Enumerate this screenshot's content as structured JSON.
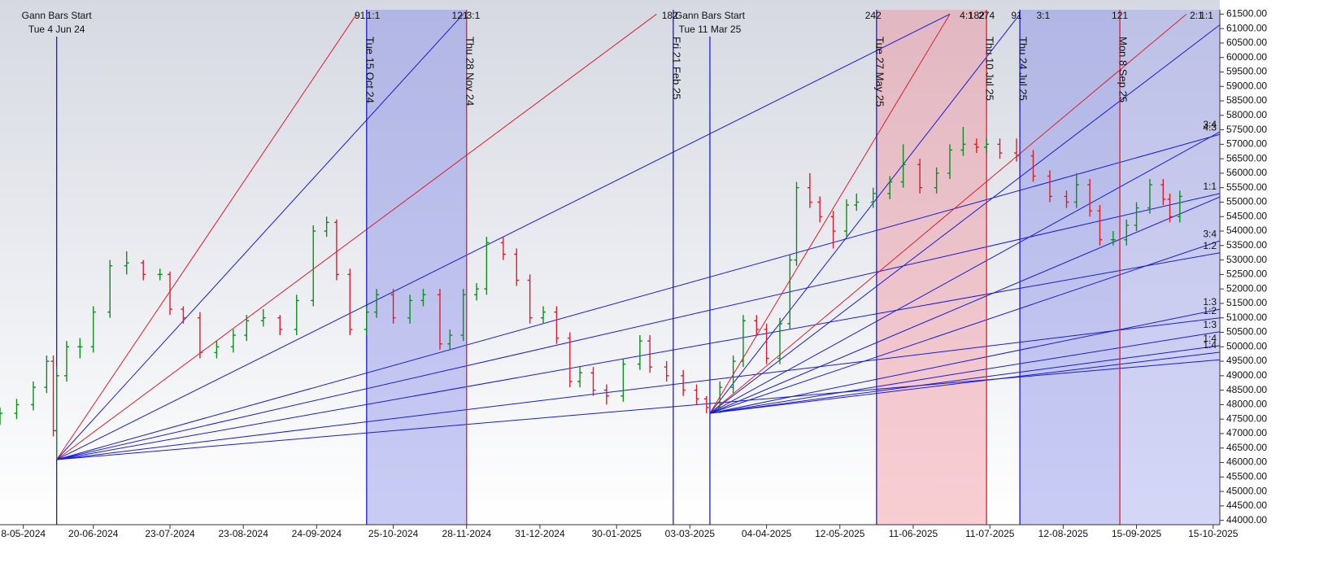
{
  "chart_data": {
    "type": "ohlc",
    "x": [
      0,
      5,
      10,
      14,
      16,
      17,
      20,
      24,
      28,
      33,
      38,
      43,
      48,
      51,
      55,
      60,
      65,
      70,
      74,
      79,
      84,
      89,
      94,
      98,
      101,
      105,
      110,
      113,
      118,
      123,
      127,
      132,
      135,
      139,
      143,
      146,
      151,
      155,
      159,
      163,
      167,
      171,
      174,
      178,
      182,
      187,
      192,
      195,
      200,
      205,
      209,
      212,
      216,
      220,
      223,
      227,
      230,
      234,
      237,
      239,
      243,
      246,
      250,
      254,
      257,
      262,
      267,
      271,
      276,
      281,
      285,
      289,
      293,
      296,
      300,
      305,
      310,
      315,
      320,
      323,
      327,
      330,
      334,
      338,
      341,
      345,
      349,
      351,
      354
    ],
    "open": [
      47500,
      47700,
      48000,
      48600,
      49500,
      47100,
      49000,
      50000,
      50000,
      51200,
      52800,
      52900,
      52500,
      52500,
      51300,
      51000,
      49800,
      50000,
      50400,
      50900,
      51000,
      50600,
      51600,
      54000,
      54300,
      52500,
      50600,
      51200,
      51800,
      51000,
      51600,
      51800,
      50100,
      50400,
      51800,
      52000,
      53600,
      53200,
      52300,
      51000,
      51200,
      50300,
      48800,
      49100,
      48500,
      48300,
      49400,
      50200,
      49300,
      49000,
      48500,
      48200,
      47900,
      48600,
      49500,
      50900,
      50600,
      49600,
      50800,
      53000,
      55500,
      55000,
      54500,
      54000,
      54900,
      55000,
      55300,
      55700,
      56300,
      55500,
      56000,
      56800,
      57000,
      56900,
      57000,
      56700,
      56600,
      55900,
      55200,
      55000,
      55600,
      54700,
      53700,
      53700,
      54200,
      54800,
      55600,
      55100,
      54500
    ],
    "high": [
      47900,
      48200,
      48800,
      49700,
      49700,
      49300,
      50200,
      50300,
      51400,
      53000,
      53300,
      53000,
      52700,
      52600,
      51400,
      51200,
      50200,
      50600,
      51100,
      51300,
      51100,
      51800,
      54200,
      54500,
      54400,
      52700,
      51400,
      52000,
      52000,
      51800,
      52000,
      52000,
      50600,
      52000,
      52200,
      53800,
      53800,
      53400,
      52500,
      51400,
      51400,
      50500,
      49300,
      49300,
      48700,
      49600,
      50400,
      50400,
      49500,
      49200,
      48700,
      48300,
      48800,
      49700,
      51100,
      51100,
      50800,
      51000,
      53200,
      55700,
      56000,
      55200,
      54700,
      55100,
      55300,
      55500,
      55900,
      57000,
      56500,
      56200,
      57000,
      57600,
      57200,
      57200,
      57200,
      57200,
      56800,
      56100,
      55400,
      56000,
      55800,
      54900,
      54000,
      54400,
      55000,
      55800,
      55800,
      55300,
      55400
    ],
    "low": [
      47300,
      47500,
      47800,
      48400,
      46900,
      46100,
      48800,
      49600,
      49800,
      51000,
      52500,
      52300,
      52300,
      51100,
      50800,
      49600,
      49600,
      49800,
      50200,
      50700,
      50400,
      50400,
      51400,
      53800,
      52300,
      50400,
      50400,
      51000,
      50800,
      50800,
      51400,
      49900,
      49900,
      50200,
      51600,
      51800,
      53000,
      52100,
      50800,
      50800,
      50100,
      48600,
      48600,
      48300,
      48000,
      48100,
      49200,
      49100,
      48800,
      48300,
      48000,
      47700,
      47700,
      48400,
      49300,
      50400,
      49400,
      49400,
      50600,
      52800,
      54800,
      54300,
      53400,
      53800,
      54700,
      54800,
      55100,
      55500,
      55300,
      55300,
      55800,
      56600,
      56700,
      56700,
      56500,
      56400,
      55700,
      55000,
      54800,
      54800,
      54500,
      53500,
      53500,
      53500,
      54000,
      54600,
      54900,
      54300,
      54300
    ],
    "close": [
      47700,
      48000,
      48600,
      49500,
      47100,
      49000,
      50000,
      50000,
      51200,
      52800,
      52900,
      52500,
      52500,
      51300,
      51000,
      49800,
      50000,
      50400,
      50900,
      51000,
      50600,
      51600,
      54000,
      54300,
      52500,
      50600,
      51200,
      51800,
      51000,
      51600,
      51800,
      50100,
      50400,
      51800,
      52000,
      53600,
      53200,
      52300,
      51000,
      51200,
      50300,
      48800,
      49100,
      48500,
      48300,
      49400,
      50200,
      49300,
      49000,
      48500,
      48200,
      47900,
      48600,
      49500,
      50900,
      50600,
      49600,
      50800,
      53000,
      55500,
      55000,
      54500,
      54000,
      54900,
      55000,
      55300,
      55700,
      56300,
      55500,
      56000,
      56800,
      57000,
      56900,
      57000,
      56700,
      56600,
      55900,
      55200,
      55000,
      55600,
      54700,
      53700,
      53700,
      54200,
      54800,
      55600,
      55100,
      54500,
      55200
    ],
    "up_color": "#0a8f1a",
    "down_color": "#e01c2c",
    "xlim": [
      0,
      366
    ],
    "xticks": [
      {
        "value": 7,
        "label": "8-05-2024"
      },
      {
        "value": 28,
        "label": "20-06-2024"
      },
      {
        "value": 51,
        "label": "23-07-2024"
      },
      {
        "value": 73,
        "label": "23-08-2024"
      },
      {
        "value": 95,
        "label": "24-09-2024"
      },
      {
        "value": 118,
        "label": "25-10-2024"
      },
      {
        "value": 140,
        "label": "28-11-2024"
      },
      {
        "value": 162,
        "label": "31-12-2024"
      },
      {
        "value": 185,
        "label": "30-01-2025"
      },
      {
        "value": 207,
        "label": "03-03-2025"
      },
      {
        "value": 230,
        "label": "04-04-2025"
      },
      {
        "value": 252,
        "label": "12-05-2025"
      },
      {
        "value": 274,
        "label": "11-06-2025"
      },
      {
        "value": 297,
        "label": "11-07-2025"
      },
      {
        "value": 319,
        "label": "12-08-2025"
      },
      {
        "value": 341,
        "label": "15-09-2025"
      },
      {
        "value": 364,
        "label": "15-10-2025"
      }
    ],
    "ylim": [
      43850,
      61650
    ],
    "yticks": [
      {
        "value": 44000,
        "label": "44000.00"
      },
      {
        "value": 44500,
        "label": "44500.00"
      },
      {
        "value": 45000,
        "label": "45000.00"
      },
      {
        "value": 45500,
        "label": "45500.00"
      },
      {
        "value": 46000,
        "label": "46000.00"
      },
      {
        "value": 46500,
        "label": "46500.00"
      },
      {
        "value": 47000,
        "label": "47000.00"
      },
      {
        "value": 47500,
        "label": "47500.00"
      },
      {
        "value": 48000,
        "label": "48000.00"
      },
      {
        "value": 48500,
        "label": "48500.00"
      },
      {
        "value": 49000,
        "label": "49000.00"
      },
      {
        "value": 49500,
        "label": "49500.00"
      },
      {
        "value": 50000,
        "label": "50000.00"
      },
      {
        "value": 50500,
        "label": "50500.00"
      },
      {
        "value": 51000,
        "label": "51000.00"
      },
      {
        "value": 51500,
        "label": "51500.00"
      },
      {
        "value": 52000,
        "label": "52000.00"
      },
      {
        "value": 52500,
        "label": "52500.00"
      },
      {
        "value": 53000,
        "label": "53000.00"
      },
      {
        "value": 53500,
        "label": "53500.00"
      },
      {
        "value": 54000,
        "label": "54000.00"
      },
      {
        "value": 54500,
        "label": "54500.00"
      },
      {
        "value": 55000,
        "label": "55000.00"
      },
      {
        "value": 55500,
        "label": "55500.00"
      },
      {
        "value": 56000,
        "label": "56000.00"
      },
      {
        "value": 56500,
        "label": "56500.00"
      },
      {
        "value": 57000,
        "label": "57000.00"
      },
      {
        "value": 57500,
        "label": "57500.00"
      },
      {
        "value": 58000,
        "label": "58000.00"
      },
      {
        "value": 58500,
        "label": "58500.00"
      },
      {
        "value": 59000,
        "label": "59000.00"
      },
      {
        "value": 59500,
        "label": "59500.00"
      },
      {
        "value": 60000,
        "label": "60000.00"
      },
      {
        "value": 60500,
        "label": "60500.00"
      },
      {
        "value": 61000,
        "label": "61000.00"
      },
      {
        "value": 61500,
        "label": "61500.00"
      }
    ],
    "bands": [
      {
        "from": 110,
        "to": 140,
        "color": "#7f86e6"
      },
      {
        "from": 263,
        "to": 296,
        "color": "#f08a96"
      },
      {
        "from": 306,
        "to": 336,
        "color": "#7f86e6"
      },
      {
        "from": 336,
        "to": 366,
        "color": "#9aa0ec"
      }
    ],
    "markers": [
      {
        "x": 17,
        "color": "#1a1ad8",
        "title": "Gann Bars Start",
        "label": "Tue 4 Jun 24"
      },
      {
        "x": 110,
        "color": "#1a1ad8",
        "label": "Tue 15 Oct 24"
      },
      {
        "x": 140,
        "color": "#e01c2c",
        "label": "Thu 28 Nov 24"
      },
      {
        "x": 202,
        "color": "#1a1ad8",
        "label": "Fri 21 Feb 25"
      },
      {
        "x": 213,
        "color": "#1a1ad8",
        "title": "Gann Bars Start",
        "label": "Tue 11 Mar 25"
      },
      {
        "x": 263,
        "color": "#1a1ad8",
        "label": "Tue 27 May 25"
      },
      {
        "x": 296,
        "color": "#e01c2c",
        "label": "Thu 10 Jul 25"
      },
      {
        "x": 306,
        "color": "#1a1ad8",
        "label": "Thu 24 Jul 25"
      },
      {
        "x": 336,
        "color": "#e01c2c",
        "label": "Mon 8 Sep 25"
      }
    ],
    "top_labels": [
      {
        "x": 108,
        "text": "91"
      },
      {
        "x": 112,
        "text": "1:1"
      },
      {
        "x": 138,
        "text": "121"
      },
      {
        "x": 142,
        "text": "3:1"
      },
      {
        "x": 201,
        "text": "182"
      },
      {
        "x": 262,
        "text": "242"
      },
      {
        "x": 290,
        "text": "4:1"
      },
      {
        "x": 293,
        "text": "182"
      },
      {
        "x": 296,
        "text": "274"
      },
      {
        "x": 305,
        "text": "91"
      },
      {
        "x": 313,
        "text": "3:1"
      },
      {
        "x": 336,
        "text": "121"
      },
      {
        "x": 359,
        "text": "2:1"
      },
      {
        "x": 362,
        "text": "1:1"
      }
    ],
    "fans": [
      {
        "origin": [
          17,
          46100
        ],
        "lines": [
          {
            "to": [
              107,
              61500
            ],
            "color": "#e01c2c"
          },
          {
            "to": [
              139,
              61500
            ],
            "color": "#1a1ad8"
          },
          {
            "to": [
              197,
              61500
            ],
            "color": "#e01c2c"
          },
          {
            "to": [
              285,
              61500
            ],
            "color": "#1a1ad8"
          },
          {
            "to": [
              366,
              57340
            ],
            "color": "#1a1ad8",
            "label": "4:3"
          },
          {
            "to": [
              366,
              55300
            ],
            "color": "#1a1ad8",
            "label": "1:1"
          },
          {
            "to": [
              366,
              53250
            ],
            "color": "#1a1ad8",
            "label": "1:2"
          },
          {
            "to": [
              366,
              51000
            ],
            "color": "#1a1ad8",
            "label": "1:2"
          },
          {
            "to": [
              366,
              49550
            ],
            "color": "#1a1ad8"
          }
        ]
      },
      {
        "origin": [
          213,
          47700
        ],
        "lines": [
          {
            "to": [
              285,
              61500
            ],
            "color": "#e01c2c"
          },
          {
            "to": [
              306,
              61500
            ],
            "color": "#1a1ad8"
          },
          {
            "to": [
              356,
              61500
            ],
            "color": "#e01c2c"
          },
          {
            "to": [
              366,
              61130
            ],
            "color": "#1a1ad8"
          },
          {
            "to": [
              366,
              57430
            ],
            "color": "#1a1ad8",
            "label": "3:4"
          },
          {
            "to": [
              366,
              55180
            ],
            "color": "#1a1ad8"
          },
          {
            "to": [
              366,
              53660
            ],
            "color": "#1a1ad8",
            "label": "3:4"
          },
          {
            "to": [
              366,
              51300
            ],
            "color": "#1a1ad8",
            "label": "1:3"
          },
          {
            "to": [
              366,
              50520
            ],
            "color": "#1a1ad8",
            "label": "1:3"
          },
          {
            "to": [
              366,
              50040
            ],
            "color": "#1a1ad8",
            "label": "1:4"
          },
          {
            "to": [
              366,
              49810
            ],
            "color": "#1a1ad8",
            "label": "1:4"
          }
        ]
      }
    ]
  }
}
